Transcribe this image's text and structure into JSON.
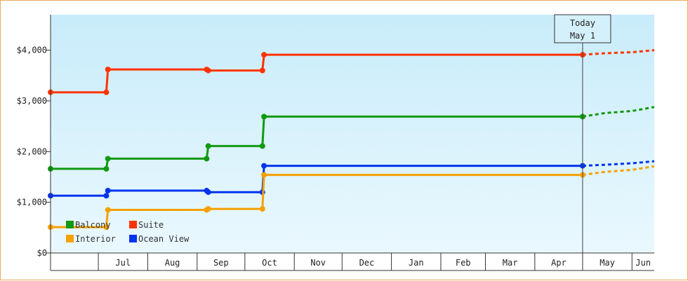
{
  "chart_data": {
    "type": "line",
    "step": true,
    "title": "",
    "xlabel": "",
    "ylabel": "",
    "x_range": [
      "2022-06-01",
      "2023-06-15"
    ],
    "ylim": [
      0,
      4700
    ],
    "y_ticks": [
      {
        "value": 0,
        "label": "$0"
      },
      {
        "value": 1000,
        "label": "$1,000"
      },
      {
        "value": 2000,
        "label": "$2,000"
      },
      {
        "value": 3000,
        "label": "$3,000"
      },
      {
        "value": 4000,
        "label": "$4,000"
      }
    ],
    "x_ticks": [
      {
        "date": "2022-06-01",
        "label": ""
      },
      {
        "date": "2022-07-01",
        "label": "Jul"
      },
      {
        "date": "2022-08-01",
        "label": "Aug"
      },
      {
        "date": "2022-09-01",
        "label": "Sep"
      },
      {
        "date": "2022-10-01",
        "label": "Oct"
      },
      {
        "date": "2022-11-01",
        "label": "Nov"
      },
      {
        "date": "2022-12-01",
        "label": "Dec"
      },
      {
        "date": "2023-01-01",
        "label": "Jan"
      },
      {
        "date": "2023-02-01",
        "label": "Feb"
      },
      {
        "date": "2023-03-01",
        "label": "Mar"
      },
      {
        "date": "2023-04-01",
        "label": "Apr"
      },
      {
        "date": "2023-05-01",
        "label": "May"
      },
      {
        "date": "2023-06-01",
        "label": "Jun"
      }
    ],
    "today": {
      "date": "2023-05-01",
      "line1": "Today",
      "line2": "May 1"
    },
    "background_gradient": [
      "#c8ecfa",
      "#eaf8fe"
    ],
    "legend_position": "bottom-left",
    "series": [
      {
        "name": "Suite",
        "color": "#ff3300",
        "points": [
          {
            "date": "2022-06-01",
            "value": 3170
          },
          {
            "date": "2022-07-06",
            "value": 3170
          },
          {
            "date": "2022-07-07",
            "value": 3620
          },
          {
            "date": "2022-09-07",
            "value": 3620
          },
          {
            "date": "2022-09-08",
            "value": 3600
          },
          {
            "date": "2022-10-12",
            "value": 3600
          },
          {
            "date": "2022-10-13",
            "value": 3910
          },
          {
            "date": "2023-05-01",
            "value": 3910
          }
        ],
        "projection": [
          {
            "date": "2023-05-01",
            "value": 3910
          },
          {
            "date": "2023-05-15",
            "value": 3940
          },
          {
            "date": "2023-06-01",
            "value": 3960
          },
          {
            "date": "2023-06-15",
            "value": 4000
          }
        ]
      },
      {
        "name": "Balcony",
        "color": "#119911",
        "points": [
          {
            "date": "2022-06-01",
            "value": 1660
          },
          {
            "date": "2022-07-06",
            "value": 1660
          },
          {
            "date": "2022-07-07",
            "value": 1860
          },
          {
            "date": "2022-09-07",
            "value": 1860
          },
          {
            "date": "2022-09-08",
            "value": 2110
          },
          {
            "date": "2022-10-12",
            "value": 2110
          },
          {
            "date": "2022-10-13",
            "value": 2690
          },
          {
            "date": "2023-05-01",
            "value": 2690
          }
        ],
        "projection": [
          {
            "date": "2023-05-01",
            "value": 2690
          },
          {
            "date": "2023-05-15",
            "value": 2760
          },
          {
            "date": "2023-06-01",
            "value": 2800
          },
          {
            "date": "2023-06-15",
            "value": 2880
          }
        ]
      },
      {
        "name": "Ocean View",
        "color": "#0033ee",
        "points": [
          {
            "date": "2022-06-01",
            "value": 1130
          },
          {
            "date": "2022-07-06",
            "value": 1130
          },
          {
            "date": "2022-07-07",
            "value": 1230
          },
          {
            "date": "2022-09-07",
            "value": 1230
          },
          {
            "date": "2022-09-08",
            "value": 1200
          },
          {
            "date": "2022-10-12",
            "value": 1200
          },
          {
            "date": "2022-10-13",
            "value": 1720
          },
          {
            "date": "2023-05-01",
            "value": 1720
          }
        ],
        "projection": [
          {
            "date": "2023-05-01",
            "value": 1720
          },
          {
            "date": "2023-05-15",
            "value": 1740
          },
          {
            "date": "2023-06-01",
            "value": 1770
          },
          {
            "date": "2023-06-15",
            "value": 1810
          }
        ]
      },
      {
        "name": "Interior",
        "color": "#f5a000",
        "points": [
          {
            "date": "2022-06-01",
            "value": 510
          },
          {
            "date": "2022-07-06",
            "value": 510
          },
          {
            "date": "2022-07-07",
            "value": 850
          },
          {
            "date": "2022-09-07",
            "value": 850
          },
          {
            "date": "2022-09-08",
            "value": 870
          },
          {
            "date": "2022-10-12",
            "value": 870
          },
          {
            "date": "2022-10-13",
            "value": 1540
          },
          {
            "date": "2023-05-01",
            "value": 1540
          }
        ],
        "projection": [
          {
            "date": "2023-05-01",
            "value": 1540
          },
          {
            "date": "2023-05-15",
            "value": 1600
          },
          {
            "date": "2023-06-01",
            "value": 1640
          },
          {
            "date": "2023-06-15",
            "value": 1710
          }
        ]
      }
    ],
    "legend": [
      {
        "name": "Balcony",
        "color": "#119911"
      },
      {
        "name": "Suite",
        "color": "#ff3300"
      },
      {
        "name": "Interior",
        "color": "#f5a000"
      },
      {
        "name": "Ocean View",
        "color": "#0033ee"
      }
    ]
  }
}
